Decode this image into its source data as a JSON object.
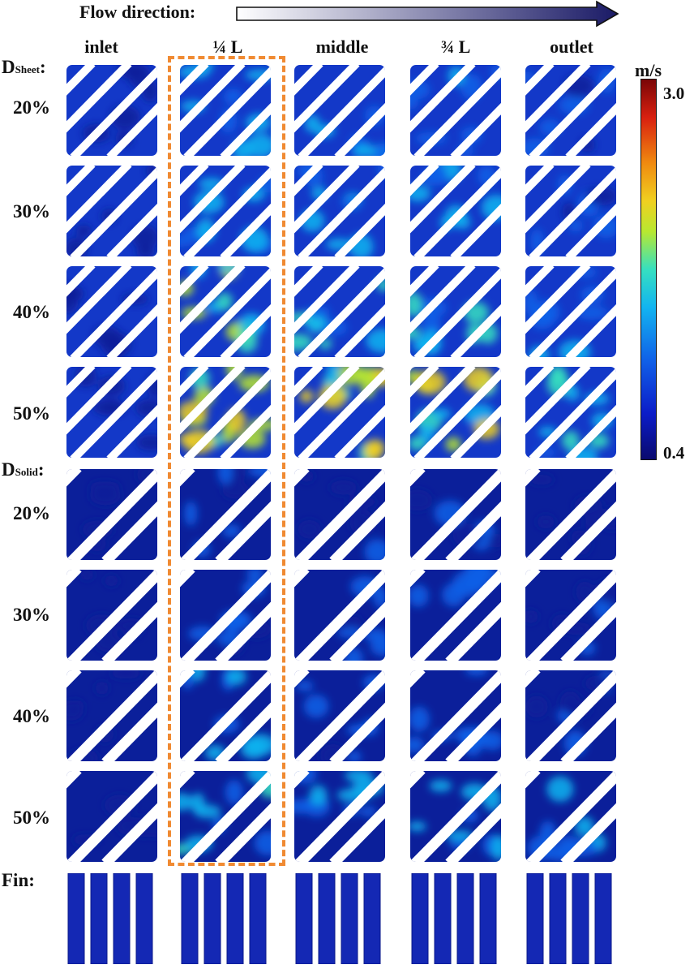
{
  "flow_label": "Flow direction",
  "flow_colon": ":",
  "columns": [
    "inlet",
    "¼ L",
    "middle",
    "¾ L",
    "outlet"
  ],
  "sheet_section": {
    "main": "D",
    "sub": "Sheet",
    "colon": ":"
  },
  "solid_section": {
    "main": "D",
    "sub": "Solid",
    "colon": ":"
  },
  "fin_section": {
    "label": "Fin",
    "colon": ":"
  },
  "row_labels": [
    "20%",
    "30%",
    "40%",
    "50%"
  ],
  "colorbar": {
    "unit": "m/s",
    "max": "3.0",
    "min": "0.4",
    "colors": [
      "#0a0a6e",
      "#0b1cc8",
      "#1060e8",
      "#12b4f0",
      "#36e0c0",
      "#b8e830",
      "#f0d020",
      "#f08a10",
      "#d82010",
      "#7a0606"
    ]
  },
  "highlight_color": "#f08a32",
  "highlighted_column": "¼ L"
}
